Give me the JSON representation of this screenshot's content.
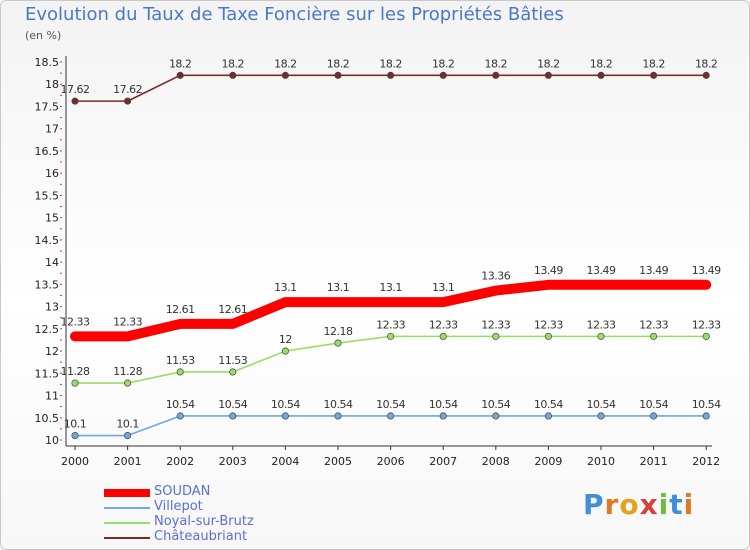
{
  "title": "Evolution du Taux de Taxe Foncière sur les Propriétés Bâties",
  "unit_label": "(en %)",
  "logo_text": "Proxiti",
  "chart_data": {
    "type": "line",
    "title": "Evolution du Taux de Taxe Foncière sur les Propriétés Bâties",
    "ylabel": "(en %)",
    "xlabel": "",
    "x": [
      "2000",
      "2001",
      "2002",
      "2003",
      "2004",
      "2005",
      "2006",
      "2007",
      "2008",
      "2009",
      "2010",
      "2011",
      "2012"
    ],
    "ylim": [
      10,
      18.5
    ],
    "yticks": [
      10,
      10.5,
      11,
      11.5,
      12,
      12.5,
      13,
      13.5,
      14,
      14.5,
      15,
      15.5,
      16,
      16.5,
      17,
      17.5,
      18,
      18.5
    ],
    "grid": false,
    "legend_position": "bottom-left",
    "series": [
      {
        "name": "SOUDAN",
        "color": "#ff0000",
        "emphasis": true,
        "values": [
          12.33,
          12.33,
          12.61,
          12.61,
          13.1,
          13.1,
          13.1,
          13.1,
          13.36,
          13.49,
          13.49,
          13.49,
          13.49
        ]
      },
      {
        "name": "Villepot",
        "color": "#6fa8dc",
        "values": [
          10.1,
          10.1,
          10.54,
          10.54,
          10.54,
          10.54,
          10.54,
          10.54,
          10.54,
          10.54,
          10.54,
          10.54,
          10.54
        ]
      },
      {
        "name": "Noyal-sur-Brutz",
        "color": "#99dd66",
        "values": [
          11.28,
          11.28,
          11.53,
          11.53,
          12,
          12.18,
          12.33,
          12.33,
          12.33,
          12.33,
          12.33,
          12.33,
          12.33
        ]
      },
      {
        "name": "Châteaubriant",
        "color": "#7a2a2a",
        "values": [
          17.62,
          17.62,
          18.2,
          18.2,
          18.2,
          18.2,
          18.2,
          18.2,
          18.2,
          18.2,
          18.2,
          18.2,
          18.2
        ]
      }
    ]
  }
}
